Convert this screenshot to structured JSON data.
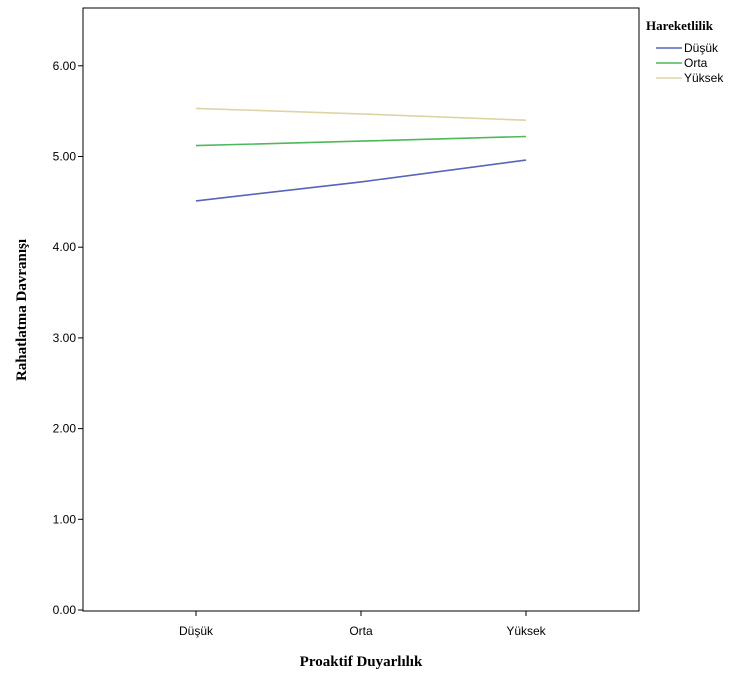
{
  "chart_data": {
    "type": "line",
    "xlabel": "Proaktif Duyarlılık",
    "ylabel": "Rahatlatma Davranışı",
    "categories": [
      "Düşük",
      "Orta",
      "Yüksek"
    ],
    "ylim": [
      0,
      6.5
    ],
    "yticks": [
      "0.00",
      "1.00",
      "2.00",
      "3.00",
      "4.00",
      "5.00",
      "6.00"
    ],
    "grid": false,
    "legend": {
      "title": "Hareketlilik",
      "placement": "top-right, outside plot"
    },
    "series": [
      {
        "name": "Düşük",
        "color": "#5565b8",
        "values": [
          4.51,
          4.72,
          4.96
        ]
      },
      {
        "name": "Orta",
        "color": "#4cb95a",
        "values": [
          5.12,
          5.17,
          5.22
        ]
      },
      {
        "name": "Yüksek",
        "color": "#ddd4a5",
        "values": [
          5.53,
          5.47,
          5.4
        ]
      }
    ]
  }
}
